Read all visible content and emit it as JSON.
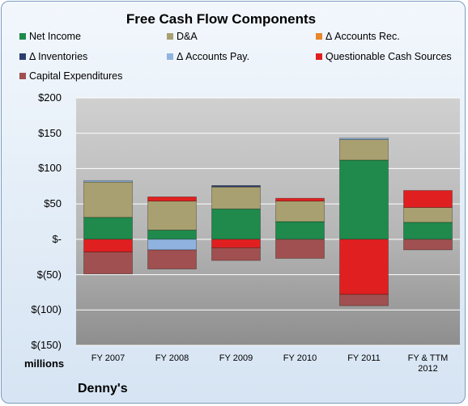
{
  "chart_data": {
    "type": "bar",
    "stacked": true,
    "title": "Free Cash Flow Components",
    "units_label": "millions",
    "company": "Denny's",
    "categories": [
      "FY 2007",
      "FY 2008",
      "FY 2009",
      "FY 2010",
      "FY 2011",
      "FY & TTM 2012"
    ],
    "ylim": [
      -150,
      200
    ],
    "yticks": [
      200,
      150,
      100,
      50,
      0,
      -50,
      -100,
      -150
    ],
    "ytick_labels": [
      "$200",
      "$150",
      "$100",
      "$50",
      "$-",
      "$(50)",
      "$(100)",
      "$(150)"
    ],
    "grid": true,
    "legend_position": "top",
    "series": [
      {
        "name": "Net Income",
        "color": "#1f8a4c",
        "values": [
          31,
          13,
          43,
          25,
          112,
          24
        ]
      },
      {
        "name": "D&A",
        "color": "#a8a070",
        "values": [
          50,
          41,
          31,
          29,
          29,
          21
        ]
      },
      {
        "name": "Δ Accounts Rec.",
        "color": "#e8862a",
        "values": [
          0,
          0,
          0,
          0,
          0,
          0
        ]
      },
      {
        "name": "Δ Inventories",
        "color": "#2c3e6e",
        "values": [
          0,
          0,
          2,
          0,
          0,
          0
        ]
      },
      {
        "name": "Δ Accounts Pay.",
        "color": "#8fb3de",
        "values": [
          2,
          -15,
          0,
          0,
          2,
          0
        ]
      },
      {
        "name": "Questionable Cash Sources",
        "color": "#e02020",
        "values": [
          -18,
          6,
          -12,
          4,
          -78,
          24
        ]
      },
      {
        "name": "Capital Expenditures",
        "color": "#a05050",
        "values": [
          -31,
          -27,
          -18,
          -27,
          -16,
          -15
        ]
      }
    ]
  }
}
